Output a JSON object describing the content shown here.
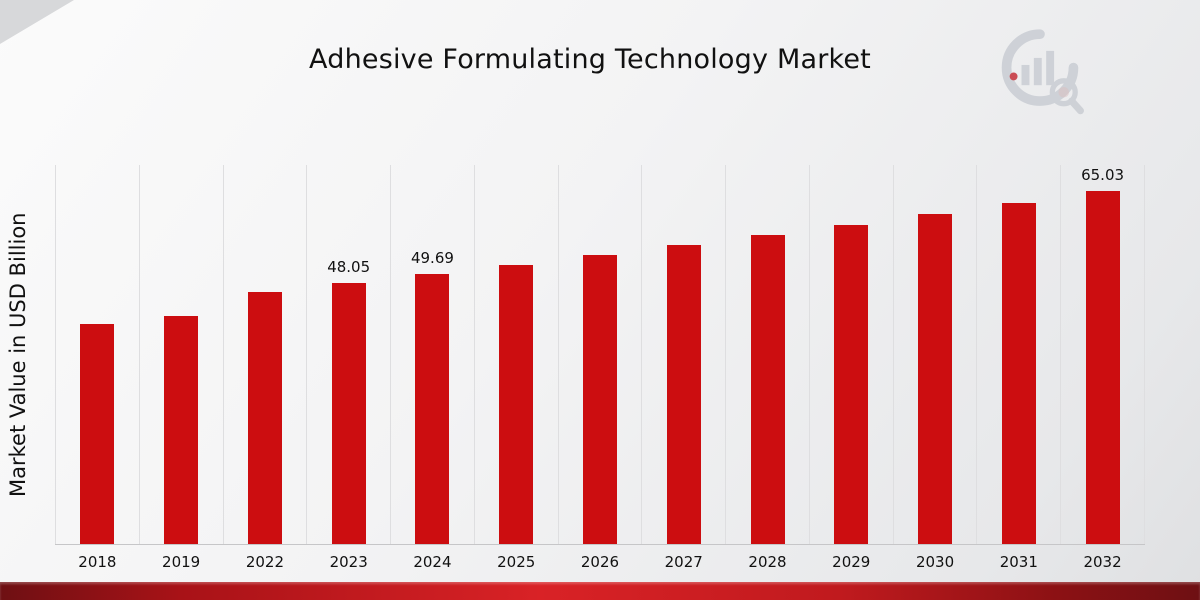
{
  "title": "Adhesive Formulating Technology Market",
  "y_axis_label": "Market Value in USD Billion",
  "logo": {
    "name": "market-research-future-logo"
  },
  "colors": {
    "bar": "#cc0d10",
    "gridline": "#dedee0",
    "baseline": "#c6c6c8",
    "strip_dark": "#6e1013",
    "strip_bright": "#d92226",
    "logo_gray": "#c9cdd3",
    "logo_red": "#c5303a"
  },
  "chart_data": {
    "type": "bar",
    "title": "Adhesive Formulating Technology Market",
    "xlabel": "",
    "ylabel": "Market Value in USD Billion",
    "categories": [
      "2018",
      "2019",
      "2022",
      "2023",
      "2024",
      "2025",
      "2026",
      "2027",
      "2028",
      "2029",
      "2030",
      "2031",
      "2032"
    ],
    "values": [
      40.6,
      42.0,
      46.5,
      48.05,
      49.69,
      51.4,
      53.2,
      55.0,
      56.9,
      58.8,
      60.8,
      62.9,
      65.03
    ],
    "data_labels": [
      "",
      "",
      "",
      "48.05",
      "49.69",
      "",
      "",
      "",
      "",
      "",
      "",
      "",
      "65.03"
    ],
    "ylim": [
      0,
      70
    ],
    "grid": "vertical-only",
    "legend": "none",
    "bar_color": "#cc0d10"
  }
}
